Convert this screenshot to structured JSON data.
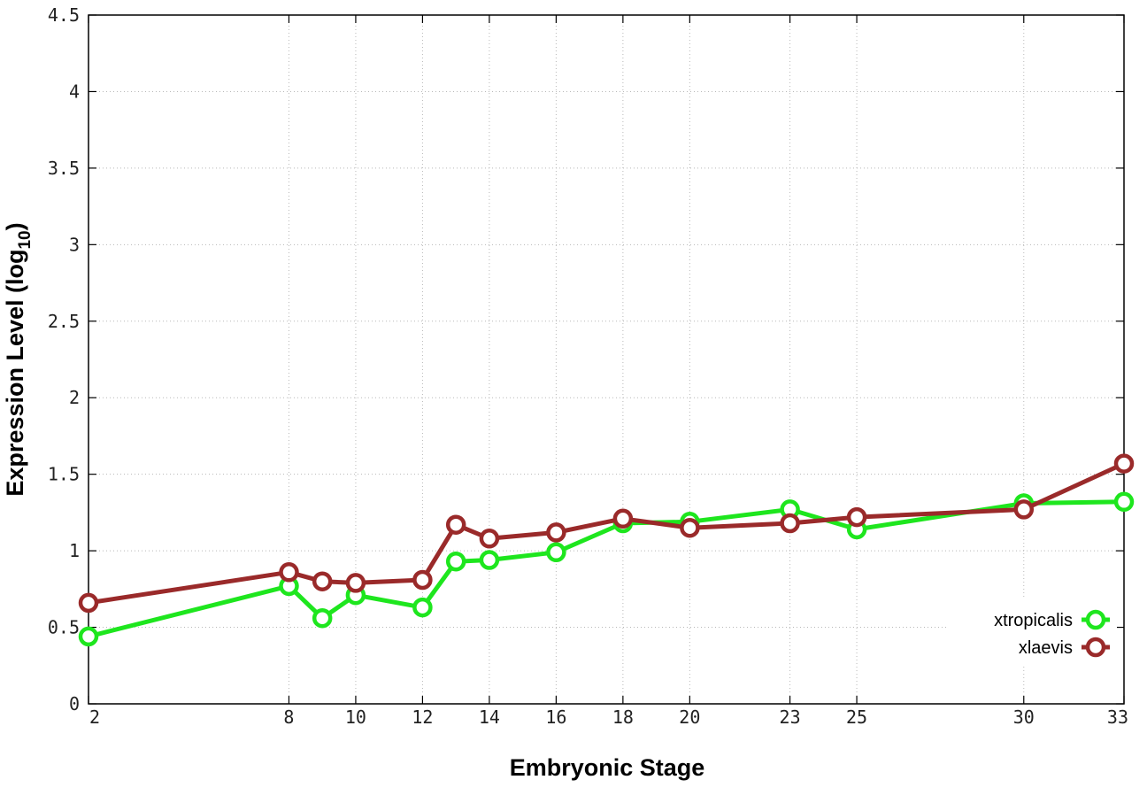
{
  "chart_data": {
    "type": "line",
    "title": "",
    "xlabel": "Embryonic Stage",
    "ylabel_main": "Expression Level (log",
    "ylabel_sub": "10",
    "ylabel_close": ")",
    "x_ticks": [
      2,
      8,
      10,
      12,
      14,
      16,
      18,
      20,
      23,
      25,
      30,
      33
    ],
    "y_ticks": [
      "0",
      "0.5",
      "1",
      "1.5",
      "2",
      "2.5",
      "3",
      "3.5",
      "4",
      "4.5"
    ],
    "xlim": [
      2,
      33
    ],
    "ylim": [
      0,
      4.5
    ],
    "grid": true,
    "legend_position": "bottom-right",
    "series": [
      {
        "name": "xtropicalis",
        "color": "#1ee61e",
        "x": [
          2,
          8,
          9,
          10,
          12,
          13,
          14,
          16,
          18,
          20,
          23,
          25,
          30,
          33
        ],
        "y": [
          0.44,
          0.77,
          0.56,
          0.71,
          0.63,
          0.93,
          0.94,
          0.99,
          1.18,
          1.19,
          1.27,
          1.14,
          1.31,
          1.32
        ]
      },
      {
        "name": "xlaevis",
        "color": "#9a2a2a",
        "x": [
          2,
          8,
          9,
          10,
          12,
          13,
          14,
          16,
          18,
          20,
          23,
          25,
          30,
          33
        ],
        "y": [
          0.66,
          0.86,
          0.8,
          0.79,
          0.81,
          1.17,
          1.08,
          1.12,
          1.21,
          1.15,
          1.18,
          1.22,
          1.27,
          1.57
        ]
      }
    ]
  }
}
